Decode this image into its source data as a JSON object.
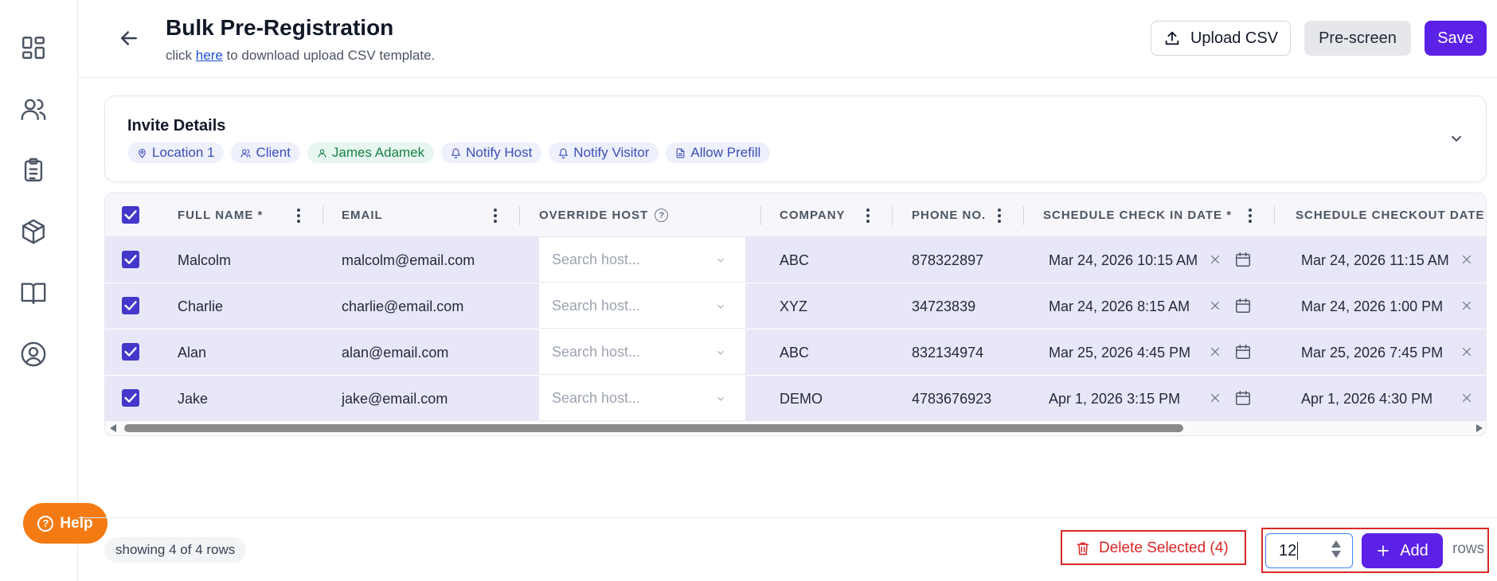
{
  "header": {
    "title": "Bulk Pre-Registration",
    "subtitle_prefix": "click ",
    "subtitle_link": "here",
    "subtitle_suffix": " to download upload CSV template.",
    "upload_label": "Upload CSV",
    "prescreen_label": "Pre-screen",
    "save_label": "Save"
  },
  "sidebar": {
    "items": [
      {
        "name": "dashboard-icon"
      },
      {
        "name": "users-icon"
      },
      {
        "name": "clipboard-icon"
      },
      {
        "name": "package-icon"
      },
      {
        "name": "book-icon"
      },
      {
        "name": "user-circle-icon"
      }
    ],
    "help_label": "Help"
  },
  "invite": {
    "title": "Invite Details",
    "chips": [
      "Location 1",
      "Client",
      "James Adamek",
      "Notify Host",
      "Notify Visitor",
      "Allow Prefill"
    ]
  },
  "table": {
    "columns": {
      "full_name": "FULL NAME *",
      "email": "EMAIL",
      "override_host": "OVERRIDE HOST",
      "company": "COMPANY",
      "phone": "PHONE NO.",
      "checkin": "SCHEDULE CHECK IN DATE *",
      "checkout": "SCHEDULE CHECKOUT DATE"
    },
    "host_placeholder": "Search host...",
    "rows": [
      {
        "name": "Malcolm",
        "email": "malcolm@email.com",
        "company": "ABC",
        "phone": "878322897",
        "checkin": "Mar 24, 2026 10:15 AM",
        "checkout": "Mar 24, 2026 11:15 AM"
      },
      {
        "name": "Charlie",
        "email": "charlie@email.com",
        "company": "XYZ",
        "phone": "34723839",
        "checkin": "Mar 24, 2026 8:15 AM",
        "checkout": "Mar 24, 2026 1:00 PM"
      },
      {
        "name": "Alan",
        "email": "alan@email.com",
        "company": "ABC",
        "phone": "832134974",
        "checkin": "Mar 25, 2026 4:45 PM",
        "checkout": "Mar 25, 2026 7:45 PM"
      },
      {
        "name": "Jake",
        "email": "jake@email.com",
        "company": "DEMO",
        "phone": "4783676923",
        "checkin": "Apr 1, 2026 3:15 PM",
        "checkout": "Apr 1, 2026 4:30 PM"
      }
    ]
  },
  "footer": {
    "rows_count": "showing 4 of 4 rows",
    "delete_label": "Delete Selected (4)",
    "add_count": "12",
    "add_label": "Add",
    "rows_label": "rows"
  },
  "colors": {
    "accent": "#5b21e6",
    "danger": "#dc2626",
    "help": "#f47b14",
    "row_selected": "#e8e7f7"
  }
}
